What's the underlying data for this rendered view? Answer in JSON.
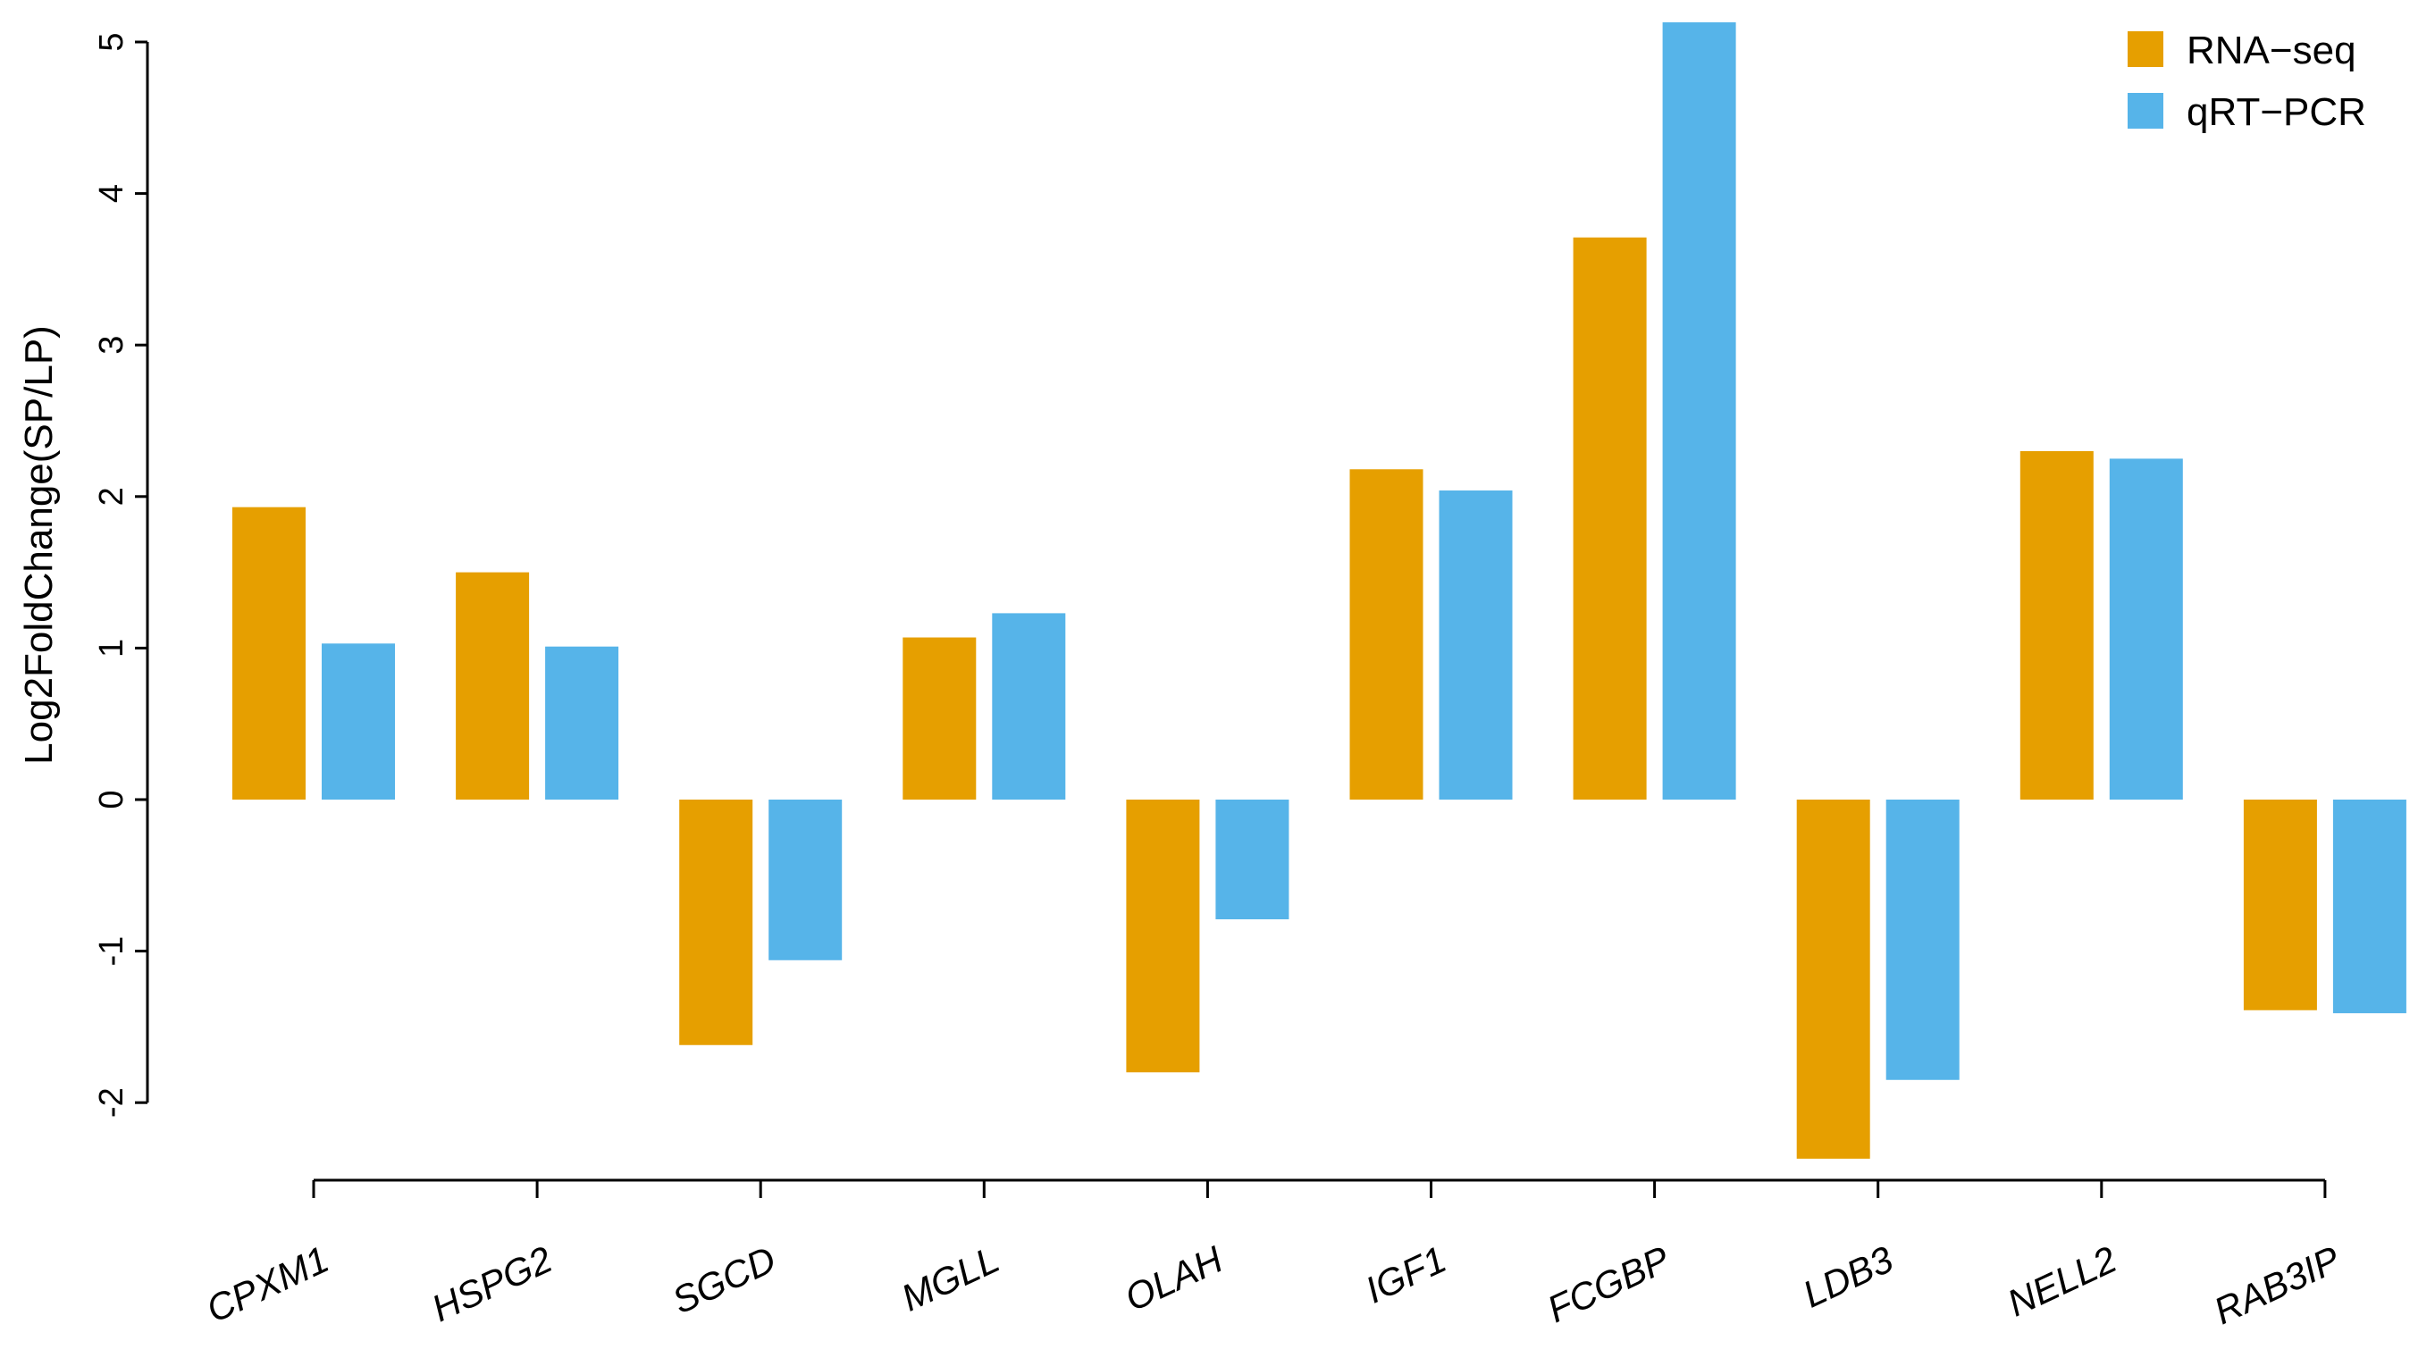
{
  "chart_data": {
    "type": "bar",
    "ylabel": "Log2FoldChange(SP/LP)",
    "xlabel": "",
    "ylim": [
      -2,
      5
    ],
    "yticks": [
      -2,
      -1,
      0,
      1,
      2,
      3,
      4,
      5
    ],
    "grid": false,
    "legend_position": "top-right",
    "categories": [
      "CPXM1",
      "HSPG2",
      "SGCD",
      "MGLL",
      "OLAH",
      "IGF1",
      "FCGBP",
      "LDB3",
      "NELL2",
      "RAB3IP"
    ],
    "series": [
      {
        "name": "RNA−seq",
        "color": "#E69F00",
        "values": [
          1.93,
          1.5,
          -1.62,
          1.07,
          -1.8,
          2.18,
          3.71,
          -2.37,
          2.3,
          -1.39
        ]
      },
      {
        "name": "qRT−PCR",
        "color": "#56B4E9",
        "values": [
          1.03,
          1.01,
          -1.06,
          1.23,
          -0.79,
          2.04,
          5.13,
          -1.85,
          2.25,
          -1.41
        ]
      }
    ]
  }
}
